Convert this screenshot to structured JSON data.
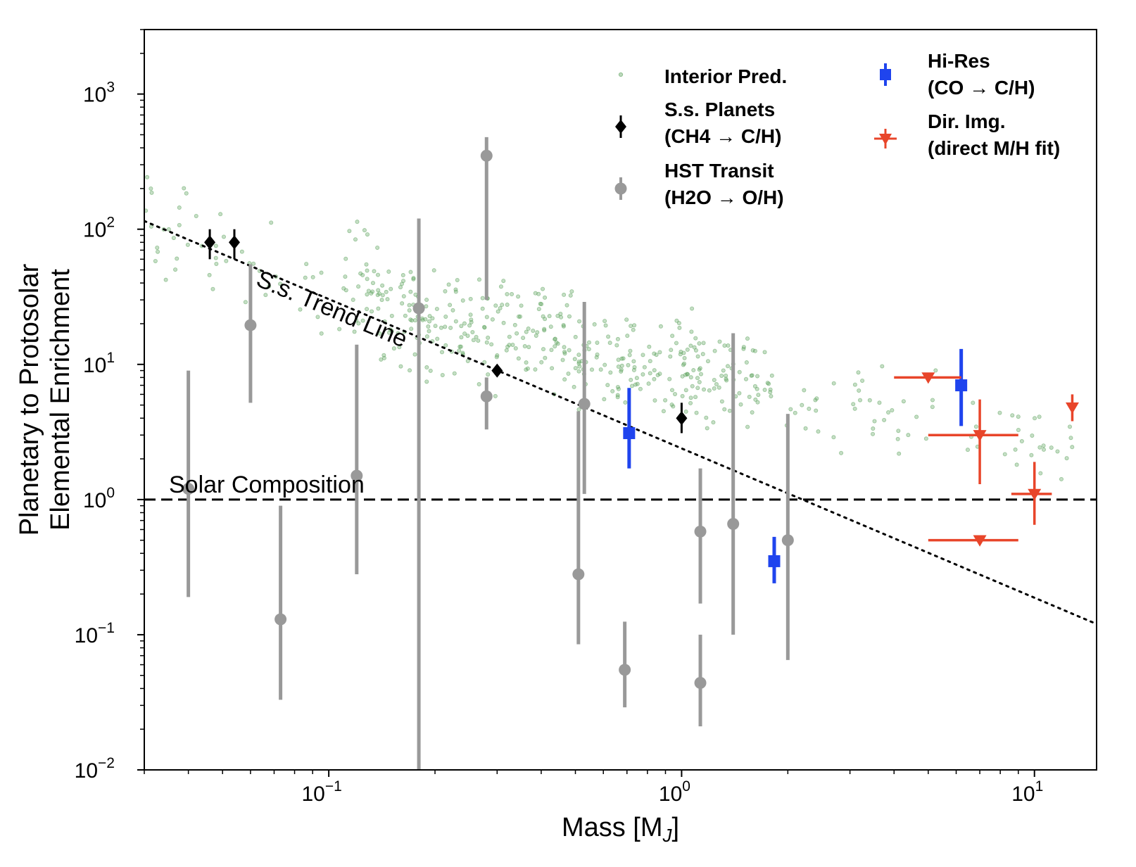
{
  "chart_data": {
    "type": "scatter",
    "xscale": "log",
    "yscale": "log",
    "xlim": [
      0.03,
      15
    ],
    "ylim": [
      0.01,
      3000
    ],
    "xlabel_main": "Mass [M",
    "xlabel_sub": "J",
    "xlabel_end": "]",
    "ylabel_line1": "Planetary to Protosolar",
    "ylabel_line2": "Elemental Enrichment",
    "x_ticks": [
      {
        "value": 0.1,
        "base": "10",
        "exp": "−1"
      },
      {
        "value": 1,
        "base": "10",
        "exp": "0"
      },
      {
        "value": 10,
        "base": "10",
        "exp": "1"
      }
    ],
    "y_ticks": [
      {
        "value": 0.01,
        "base": "10",
        "exp": "−2"
      },
      {
        "value": 0.1,
        "base": "10",
        "exp": "−1"
      },
      {
        "value": 1,
        "base": "10",
        "exp": "0"
      },
      {
        "value": 10,
        "base": "10",
        "exp": "1"
      },
      {
        "value": 100,
        "base": "10",
        "exp": "2"
      },
      {
        "value": 1000,
        "base": "10",
        "exp": "3"
      }
    ],
    "annotations": {
      "solar_label": "Solar Composition",
      "trend_label": "S.s. Trend Line",
      "solar_value": 1,
      "trend": {
        "x0": 0.03,
        "y0": 115,
        "x1": 15,
        "y1": 0.12
      }
    },
    "colors": {
      "interior": "#5aa05a",
      "ss": "#000000",
      "hst": "#999999",
      "hires": "#1f44ee",
      "dirimg": "#e8452a"
    },
    "legend": [
      {
        "key": "interior",
        "label1": "Interior Pred.",
        "label2": ""
      },
      {
        "key": "ss",
        "label1": "S.s. Planets",
        "label2": " (CH4 → C/H)"
      },
      {
        "key": "hst",
        "label1": "HST Transit",
        "label2": " (H2O → O/H)"
      },
      {
        "key": "hires",
        "label1": "Hi-Res",
        "label2": " (CO → C/H)"
      },
      {
        "key": "dirimg",
        "label1": "Dir. Img.",
        "label2": " (direct M/H fit)"
      }
    ],
    "series": {
      "ss_planets": [
        {
          "x": 0.046,
          "y": 80,
          "ylo": 60,
          "yhi": 100
        },
        {
          "x": 0.054,
          "y": 80,
          "ylo": 60,
          "yhi": 100
        },
        {
          "x": 0.3,
          "y": 9,
          "ylo": 9,
          "yhi": 9
        },
        {
          "x": 1.0,
          "y": 4,
          "ylo": 3.1,
          "yhi": 5.2
        }
      ],
      "hst_transit": [
        {
          "x": 0.04,
          "y": 1.2,
          "ylo": 0.19,
          "yhi": 9
        },
        {
          "x": 0.06,
          "y": 19.5,
          "ylo": 5.2,
          "yhi": 55
        },
        {
          "x": 0.073,
          "y": 0.13,
          "ylo": 0.033,
          "yhi": 0.9
        },
        {
          "x": 0.12,
          "y": 1.5,
          "ylo": 0.28,
          "yhi": 14
        },
        {
          "x": 0.18,
          "y": 26,
          "ylo": 0.007,
          "yhi": 120
        },
        {
          "x": 0.28,
          "y": 350,
          "ylo": 30,
          "yhi": 480
        },
        {
          "x": 0.28,
          "y": 5.8,
          "ylo": 3.3,
          "yhi": 8
        },
        {
          "x": 0.51,
          "y": 0.28,
          "ylo": 0.085,
          "yhi": 4.5
        },
        {
          "x": 0.53,
          "y": 5.1,
          "ylo": 1.1,
          "yhi": 29
        },
        {
          "x": 0.69,
          "y": 0.055,
          "ylo": 0.029,
          "yhi": 0.125
        },
        {
          "x": 1.13,
          "y": 0.58,
          "ylo": 0.17,
          "yhi": 1.7
        },
        {
          "x": 1.13,
          "y": 0.044,
          "ylo": 0.021,
          "yhi": 0.1
        },
        {
          "x": 1.4,
          "y": 0.66,
          "ylo": 0.1,
          "yhi": 17
        },
        {
          "x": 2.0,
          "y": 0.5,
          "ylo": 0.065,
          "yhi": 4.3
        }
      ],
      "hi_res": [
        {
          "x": 0.71,
          "y": 3.1,
          "ylo": 1.7,
          "yhi": 6.7
        },
        {
          "x": 1.83,
          "y": 0.35,
          "ylo": 0.24,
          "yhi": 0.53
        },
        {
          "x": 6.2,
          "y": 7,
          "ylo": 3.5,
          "yhi": 13
        }
      ],
      "dir_img": [
        {
          "x": 5.0,
          "y": 8,
          "ylo": 8,
          "yhi": 8,
          "xlo": 4.0,
          "xhi": 6.2
        },
        {
          "x": 7.0,
          "y": 3,
          "ylo": 1.3,
          "yhi": 5.5,
          "xlo": 5.0,
          "xhi": 9.0
        },
        {
          "x": 10.0,
          "y": 1.1,
          "ylo": 0.65,
          "yhi": 1.9,
          "xlo": 8.6,
          "xhi": 11.2
        },
        {
          "x": 7.0,
          "y": 0.5,
          "ylo": 0.5,
          "yhi": 0.5,
          "xlo": 5.0,
          "xhi": 9.0
        },
        {
          "x": 12.8,
          "y": 4.8,
          "ylo": 3.8,
          "yhi": 6.0
        }
      ],
      "interior_trend": {
        "x_min": 0.03,
        "x_max": 13,
        "y_at_low_mass": 120,
        "y_at_high_mass": 2.6,
        "n_points": 540,
        "scatter_dex": 0.22
      }
    }
  }
}
